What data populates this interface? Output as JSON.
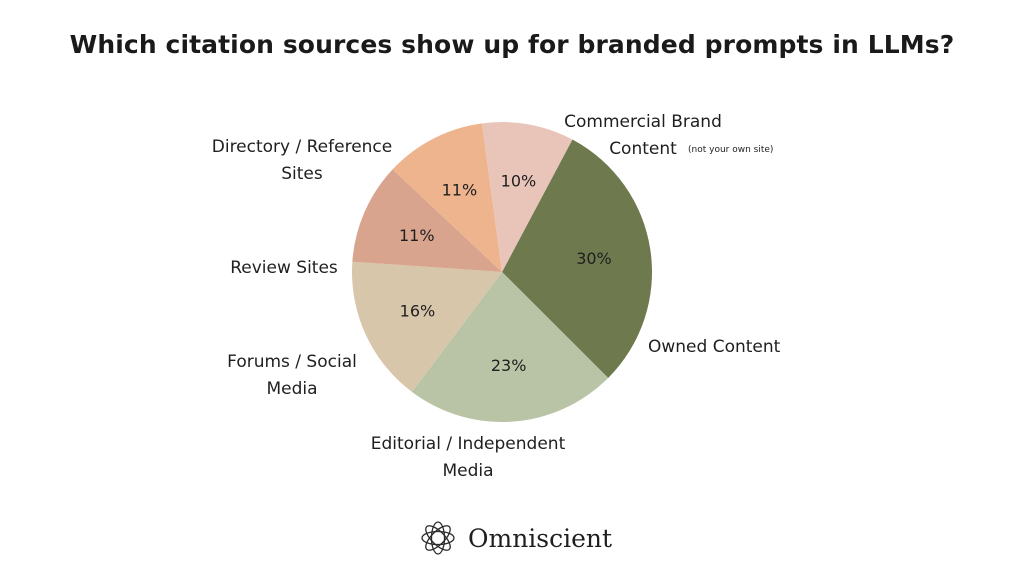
{
  "title": "Which citation sources show up for branded prompts in LLMs?",
  "chart_data": {
    "type": "pie",
    "title": "Which citation sources show up for branded prompts in LLMs?",
    "slices": [
      {
        "label": "Commercial Brand Content",
        "note": "(not your own site)",
        "value": 30,
        "display": "30%",
        "color": "#6e7a4e"
      },
      {
        "label": "Owned Content",
        "value": 23,
        "display": "23%",
        "color": "#b9c4a7"
      },
      {
        "label": "Editorial / Independent Media",
        "value": 16,
        "display": "16%",
        "color": "#d8c6ab"
      },
      {
        "label": "Forums / Social Media",
        "value": 11,
        "display": "11%",
        "color": "#d9a48d"
      },
      {
        "label": "Review Sites",
        "value": 11,
        "display": "11%",
        "color": "#eeb48e"
      },
      {
        "label": "Directory / Reference Sites",
        "value": 10,
        "display": "10%",
        "color": "#e9c5b9"
      }
    ]
  },
  "brand": {
    "name": "Omniscient",
    "icon": "omniscient-logo-icon"
  }
}
